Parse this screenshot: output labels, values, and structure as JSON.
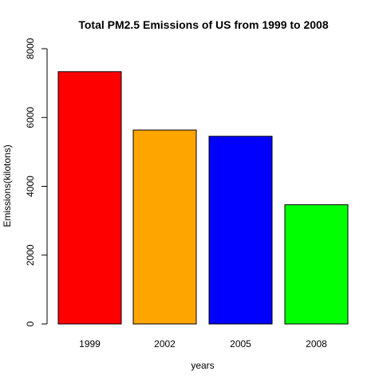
{
  "chart_data": {
    "type": "bar",
    "title": "Total PM2.5 Emissions of US from 1999 to 2008",
    "xlabel": "years",
    "ylabel": "Emissions(kilotons)",
    "categories": [
      "1999",
      "2002",
      "2005",
      "2008"
    ],
    "values": [
      7332,
      5635,
      5454,
      3464
    ],
    "colors": [
      "#ff0000",
      "#ffa500",
      "#0000ff",
      "#00ff00"
    ],
    "ylim": [
      0,
      8000
    ],
    "yticks": [
      0,
      2000,
      4000,
      6000,
      8000
    ],
    "ytick_labels": [
      "0",
      "2000",
      "4000",
      "6000",
      "8000"
    ],
    "grid": false,
    "legend": "none"
  }
}
